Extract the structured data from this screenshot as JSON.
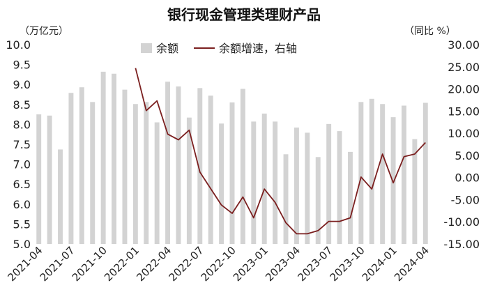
{
  "chart_data": {
    "type": "bar",
    "title": "银行现金管理类理财产品",
    "left_unit": "（万亿元）",
    "right_unit": "（同比 %）",
    "colors": {
      "bar": "#d3d3d3",
      "line": "#7b1f1f"
    },
    "legend_position": "top-center",
    "y_left": {
      "min": 5.0,
      "max": 10.0,
      "ticks": [
        "10.0",
        "9.5",
        "9.0",
        "8.5",
        "8.0",
        "7.5",
        "7.0",
        "6.5",
        "6.0",
        "5.5",
        "5.0"
      ]
    },
    "y_right": {
      "min": -15,
      "max": 30,
      "ticks": [
        "30.00",
        "25.00",
        "20.00",
        "15.00",
        "10.00",
        "5.00",
        "0.00",
        "-5.00",
        "-10.00",
        "-15.00"
      ]
    },
    "x_tick_labels": [
      "2021-04",
      "2021-07",
      "2021-10",
      "2022-01",
      "2022-04",
      "2022-07",
      "2022-10",
      "2023-01",
      "2023-04",
      "2023-07",
      "2023-10",
      "2024-01",
      "2024-04"
    ],
    "categories": [
      "2021-04",
      "2021-05",
      "2021-06",
      "2021-07",
      "2021-08",
      "2021-09",
      "2021-10",
      "2021-11",
      "2021-12",
      "2022-01",
      "2022-02",
      "2022-03",
      "2022-04",
      "2022-05",
      "2022-06",
      "2022-07",
      "2022-08",
      "2022-09",
      "2022-10",
      "2022-11",
      "2022-12",
      "2023-01",
      "2023-02",
      "2023-03",
      "2023-04",
      "2023-05",
      "2023-06",
      "2023-07",
      "2023-08",
      "2023-09",
      "2023-10",
      "2023-11",
      "2023-12",
      "2024-01",
      "2024-02",
      "2024-03",
      "2024-04"
    ],
    "series": [
      {
        "name": "余额",
        "axis": "left",
        "type": "bar",
        "values": [
          8.25,
          8.22,
          7.37,
          8.79,
          8.93,
          8.56,
          9.32,
          9.27,
          8.87,
          8.51,
          8.56,
          8.05,
          9.07,
          8.95,
          8.17,
          8.91,
          8.72,
          8.02,
          8.55,
          8.89,
          8.07,
          8.27,
          8.07,
          7.25,
          7.92,
          7.79,
          7.18,
          8.01,
          7.83,
          7.31,
          8.56,
          8.64,
          8.51,
          8.18,
          8.47,
          7.63,
          8.54
        ]
      },
      {
        "name": "余额增速，右轴",
        "axis": "right",
        "type": "line",
        "values": [
          null,
          null,
          null,
          null,
          null,
          null,
          null,
          null,
          null,
          24.7,
          15.1,
          17.3,
          9.8,
          8.5,
          10.7,
          1.2,
          -2.5,
          -6.2,
          -8.1,
          -4.4,
          -9.1,
          -2.6,
          -5.6,
          -10.2,
          -12.7,
          -12.7,
          -12.0,
          -9.9,
          -9.9,
          -9.1,
          0.1,
          -2.6,
          5.3,
          -1.2,
          4.7,
          5.3,
          7.9
        ]
      }
    ]
  }
}
